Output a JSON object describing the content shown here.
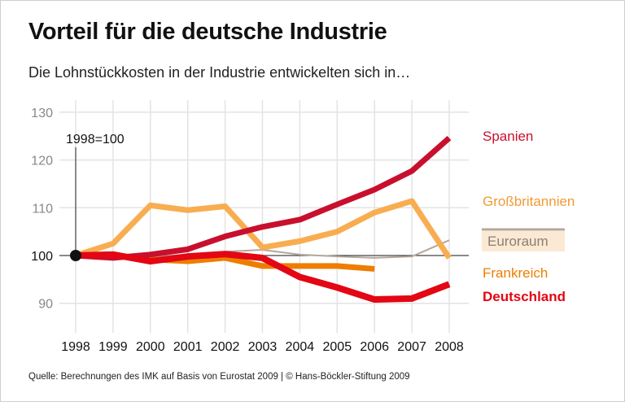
{
  "title": "Vorteil für die deutsche Industrie",
  "subtitle": "Die Lohnstückkosten in der Industrie entwickelten sich in…",
  "source": "Quelle: Berechnungen des IMK auf Basis von Eurostat 2009 | © Hans-Böckler-Stiftung 2009",
  "chart_data": {
    "type": "line",
    "title": "Vorteil für die deutsche Industrie",
    "annotation": "1998=100",
    "x": [
      1998,
      1999,
      2000,
      2001,
      2002,
      2003,
      2004,
      2005,
      2006,
      2007,
      2008
    ],
    "x_tick_labels": [
      "1998",
      "1999",
      "2000",
      "2001",
      "2002",
      "2003",
      "2004",
      "2005",
      "2006",
      "2007",
      "2008"
    ],
    "y_ticks": [
      90,
      100,
      110,
      120,
      130
    ],
    "ylim": [
      86,
      132
    ],
    "grid": true,
    "legend_placement": "right",
    "series": [
      {
        "name": "Euroraum",
        "color": "#b3a89a",
        "width": 2,
        "values": [
          100,
          100,
          99.7,
          100.2,
          100.8,
          101.2,
          100.2,
          99.8,
          99.5,
          99.8,
          103.2
        ]
      },
      {
        "name": "Großbritannien",
        "color": "#f8ad50",
        "width": 7,
        "values": [
          100,
          102.5,
          110.5,
          109.5,
          110.3,
          101.7,
          103,
          105,
          109,
          111.4,
          99.5
        ]
      },
      {
        "name": "Frankreich",
        "color": "#ee7d00",
        "width": 7,
        "values": [
          100,
          100,
          99.2,
          98.8,
          99.5,
          97.8,
          97.8,
          97.8,
          97.2,
          null,
          null
        ]
      },
      {
        "name": "Spanien",
        "color": "#c8102e",
        "width": 7,
        "values": [
          100,
          99.5,
          100.2,
          101.3,
          104,
          106,
          107.5,
          110.7,
          113.8,
          117.7,
          124.6
        ]
      },
      {
        "name": "Deutschland",
        "color": "#e30613",
        "width": 8,
        "values": [
          100,
          100.2,
          98.8,
          99.8,
          100.3,
          99.5,
          95.5,
          93.3,
          90.8,
          91,
          94
        ]
      }
    ]
  }
}
